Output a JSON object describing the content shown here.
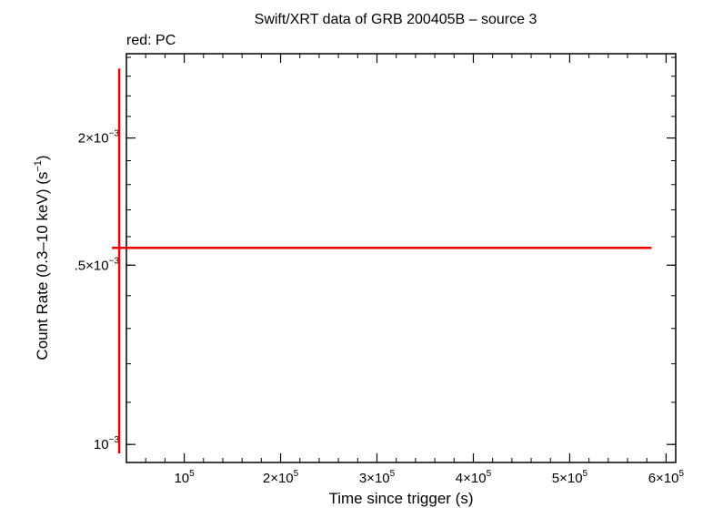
{
  "chart_data": {
    "type": "scatter",
    "title": "Swift/XRT data of GRB 200405B – source 3",
    "subtitle": "red: PC",
    "xlabel": "Time since trigger (s)",
    "ylabel": "Count Rate (0.3–10 keV) (s",
    "ylabel_sup": "−1",
    "ylabel_end": ")",
    "x_scale": "linear",
    "y_scale": "log",
    "xlim": [
      40000,
      610000
    ],
    "ylim": [
      0.00096,
      0.00242
    ],
    "grid": false,
    "x_ticks": [
      {
        "value": 100000,
        "mant": "",
        "exp": "5",
        "base": "10"
      },
      {
        "value": 200000,
        "mant": "2×",
        "exp": "5",
        "base": "10"
      },
      {
        "value": 300000,
        "mant": "3×",
        "exp": "5",
        "base": "10"
      },
      {
        "value": 400000,
        "mant": "4×",
        "exp": "5",
        "base": "10"
      },
      {
        "value": 500000,
        "mant": "5×",
        "exp": "5",
        "base": "10"
      },
      {
        "value": 600000,
        "mant": "6×",
        "exp": "5",
        "base": "10"
      }
    ],
    "y_ticks": [
      {
        "value": 0.001,
        "mant": "",
        "exp": "−3",
        "base": "10"
      },
      {
        "value": 0.0015,
        "mant": ".5×",
        "exp": "−3",
        "base": "10"
      },
      {
        "value": 0.002,
        "mant": "2×",
        "exp": "−3",
        "base": "10"
      }
    ],
    "series": [
      {
        "color": "#ee0000",
        "points": [
          {
            "x": 305000,
            "y": 0.00156,
            "xerr": [
              280000,
              280000
            ],
            "yerr": [
              0.00058,
              0.00078
            ]
          }
        ]
      }
    ]
  }
}
